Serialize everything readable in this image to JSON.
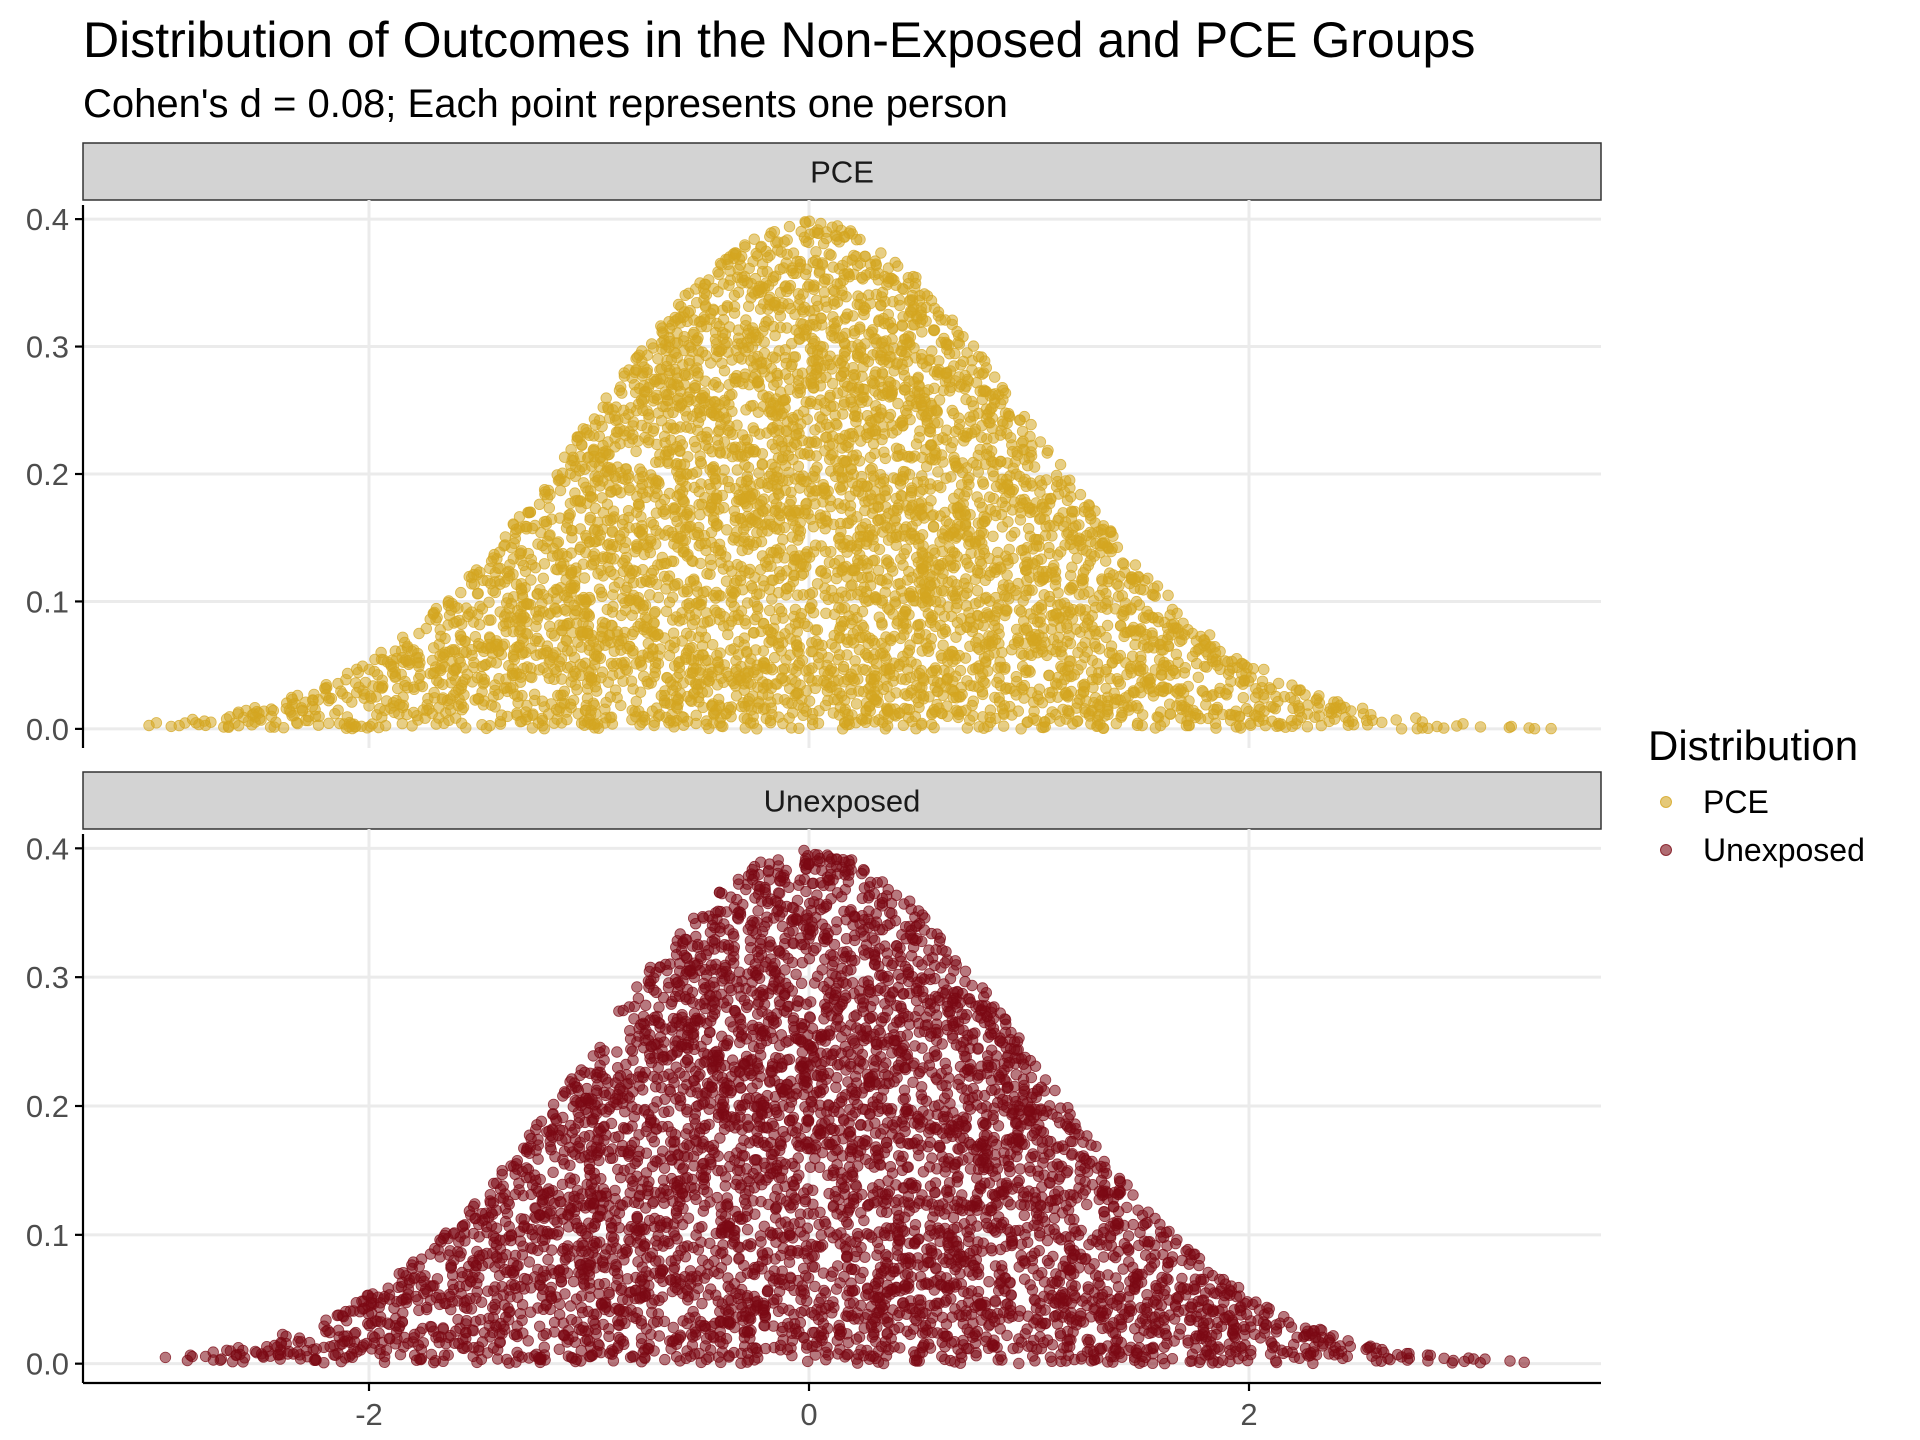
{
  "title": "Distribution of Outcomes in the Non-Exposed and PCE Groups",
  "subtitle": "Cohen's d = 0.08; Each point represents one person",
  "colors": {
    "PCE": "#D4A520",
    "Unexposed": "#7B0A14"
  },
  "legend": {
    "title": "Distribution",
    "position": "right",
    "items": [
      {
        "label": "PCE",
        "color": "#D4A520"
      },
      {
        "label": "Unexposed",
        "color": "#7B0A14"
      }
    ]
  },
  "chart_data": {
    "type": "scatter",
    "title": "Distribution of Outcomes in the Non-Exposed and PCE Groups",
    "subtitle": "Cohen's d = 0.08; Each point represents one person",
    "xlabel": "",
    "ylabel": "",
    "xlim": [
      -3.3,
      3.6
    ],
    "ylim": [
      -0.015,
      0.415
    ],
    "x_ticks": [
      "-2",
      "0",
      "2"
    ],
    "x_tick_values": [
      -2,
      0,
      2
    ],
    "y_ticks": [
      "0.0",
      "0.1",
      "0.2",
      "0.3",
      "0.4"
    ],
    "y_tick_values": [
      0,
      0.1,
      0.2,
      0.3,
      0.4
    ],
    "grid": true,
    "point_alpha": 0.55,
    "description": "Points are uniformly scattered under a standard normal density curve: y = U * dnorm(x).",
    "facets": [
      {
        "label": "PCE",
        "series": "PCE",
        "n_points": 5000,
        "mean": 0.08,
        "sd": 1,
        "x_range": [
          -3.0,
          3.4
        ]
      },
      {
        "label": "Unexposed",
        "series": "Unexposed",
        "n_points": 5000,
        "mean": 0,
        "sd": 1,
        "x_range": [
          -3.0,
          3.4
        ]
      }
    ]
  }
}
